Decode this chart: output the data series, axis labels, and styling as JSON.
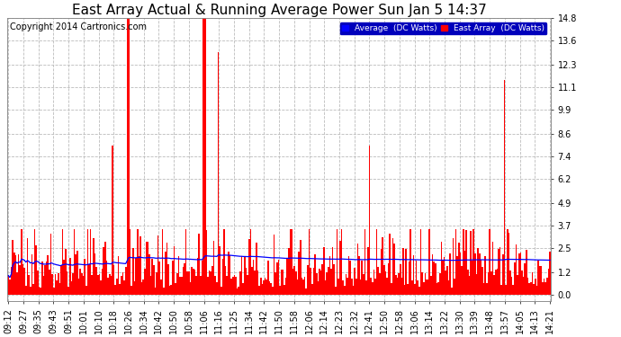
{
  "title": "East Array Actual & Running Average Power Sun Jan 5 14:37",
  "copyright": "Copyright 2014 Cartronics.com",
  "legend_labels": [
    "Average  (DC Watts)",
    "East Array  (DC Watts)"
  ],
  "legend_colors": [
    "#0000ff",
    "#ff0000"
  ],
  "legend_bg": "#0000bb",
  "ylabel_right_ticks": [
    0.0,
    1.2,
    2.5,
    3.7,
    4.9,
    6.2,
    7.4,
    8.6,
    9.9,
    11.1,
    12.3,
    13.6,
    14.8
  ],
  "ylim": [
    -0.35,
    14.8
  ],
  "x_tick_labels": [
    "09:12",
    "09:27",
    "09:35",
    "09:43",
    "09:51",
    "10:01",
    "10:10",
    "10:18",
    "10:26",
    "10:34",
    "10:42",
    "10:50",
    "10:58",
    "11:06",
    "11:16",
    "11:25",
    "11:34",
    "11:42",
    "11:50",
    "11:58",
    "12:06",
    "12:14",
    "12:23",
    "12:32",
    "12:41",
    "12:50",
    "12:58",
    "13:06",
    "13:14",
    "13:22",
    "13:30",
    "13:39",
    "13:48",
    "13:57",
    "14:05",
    "14:13",
    "14:21"
  ],
  "bar_color": "#ff0000",
  "avg_line_color": "#0000ff",
  "background_color": "#ffffff",
  "grid_color": "#bbbbbb",
  "title_fontsize": 11,
  "copyright_fontsize": 7,
  "tick_fontsize": 7,
  "n_bars": 370
}
